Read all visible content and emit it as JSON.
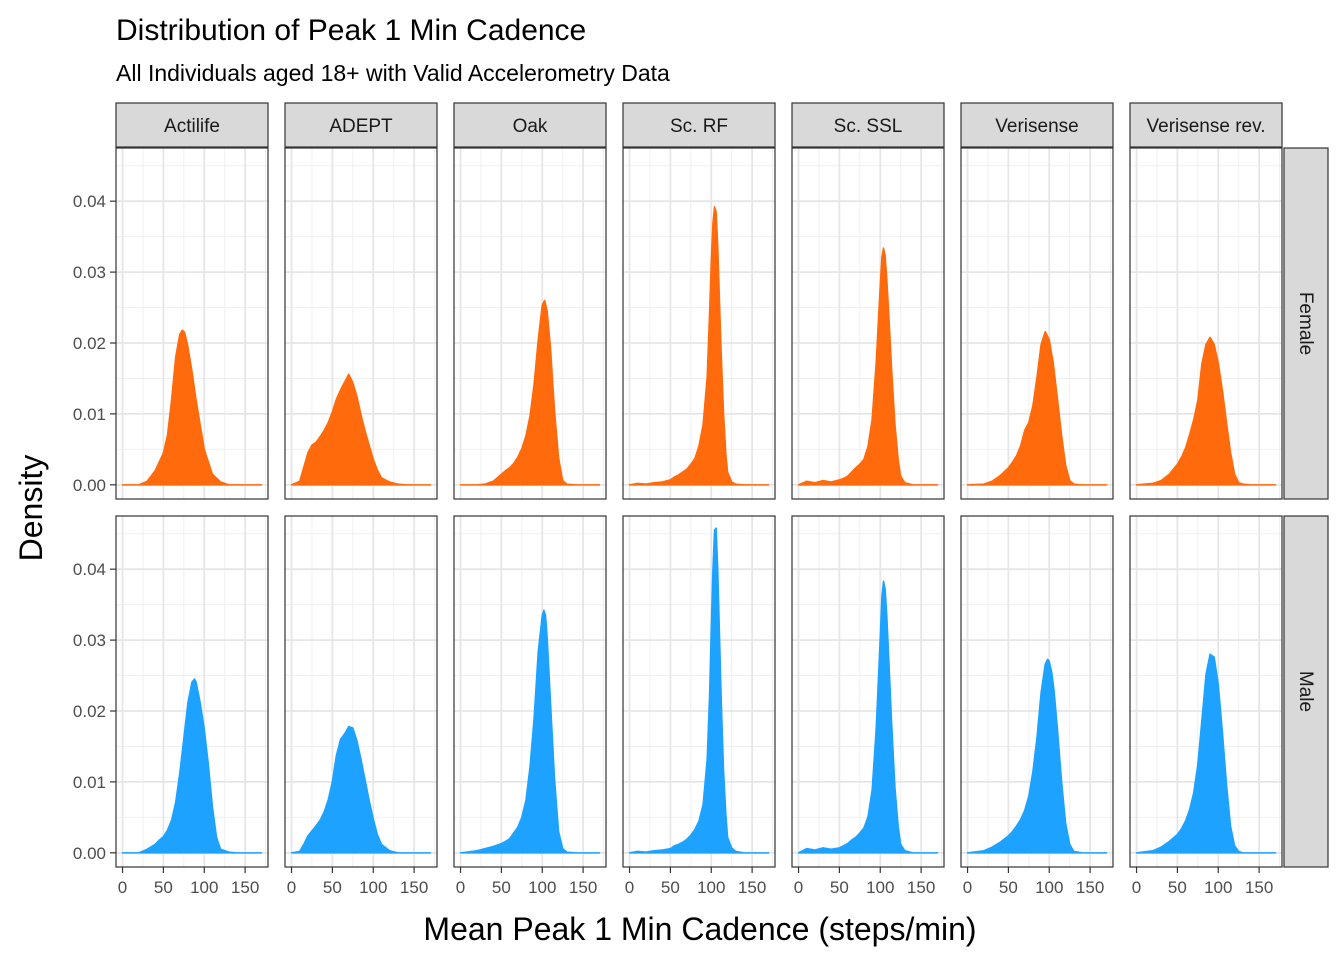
{
  "chart_data": {
    "type": "area",
    "title": "Distribution of Peak 1 Min Cadence",
    "subtitle": "All Individuals aged 18+ with Valid Accelerometry Data",
    "xlabel": "Mean Peak 1 Min Cadence (steps/min)",
    "ylabel": "Density",
    "xlim": [
      -8,
      178
    ],
    "ylim": [
      -0.002,
      0.0475
    ],
    "x_ticks": [
      0,
      50,
      100,
      150
    ],
    "x_tick_labels": [
      "0",
      "50",
      "100",
      "150"
    ],
    "y_ticks": [
      0,
      0.01,
      0.02,
      0.03,
      0.04
    ],
    "y_tick_labels": [
      "0.00",
      "0.01",
      "0.02",
      "0.03",
      "0.04"
    ],
    "grid": true,
    "columns": [
      "Actilife",
      "ADEPT",
      "Oak",
      "Sc. RF",
      "Sc. SSL",
      "Verisense",
      "Verisense rev."
    ],
    "rows": [
      {
        "label": "Female",
        "color": "#FF6A0D"
      },
      {
        "label": "Male",
        "color": "#1EA2FF"
      }
    ],
    "panels": [
      {
        "row": "Female",
        "col": "Actilife",
        "x": [
          0,
          20,
          30,
          40,
          50,
          55,
          60,
          65,
          70,
          73,
          76,
          80,
          85,
          90,
          95,
          100,
          110,
          120,
          130,
          140,
          150,
          170
        ],
        "y": [
          0,
          0,
          0.0005,
          0.002,
          0.0045,
          0.007,
          0.012,
          0.018,
          0.0212,
          0.0218,
          0.0215,
          0.0195,
          0.016,
          0.012,
          0.0085,
          0.005,
          0.0015,
          0.0004,
          0,
          0,
          0,
          0
        ]
      },
      {
        "row": "Female",
        "col": "ADEPT",
        "x": [
          0,
          10,
          15,
          20,
          25,
          30,
          35,
          40,
          45,
          50,
          55,
          60,
          65,
          70,
          75,
          80,
          85,
          90,
          95,
          100,
          105,
          110,
          120,
          130,
          140,
          150,
          170
        ],
        "y": [
          0,
          0.0005,
          0.0025,
          0.0045,
          0.0056,
          0.006,
          0.0068,
          0.0077,
          0.0088,
          0.0103,
          0.0121,
          0.0134,
          0.0145,
          0.0156,
          0.0144,
          0.0125,
          0.0099,
          0.0076,
          0.0056,
          0.0036,
          0.0021,
          0.001,
          0.0004,
          0.0001,
          0,
          0,
          0
        ]
      },
      {
        "row": "Female",
        "col": "Oak",
        "x": [
          0,
          20,
          30,
          40,
          50,
          55,
          60,
          65,
          70,
          75,
          80,
          85,
          90,
          95,
          100,
          103,
          106,
          110,
          115,
          120,
          125,
          130,
          140,
          150,
          170
        ],
        "y": [
          0,
          0,
          0.0001,
          0.0005,
          0.0015,
          0.002,
          0.0024,
          0.003,
          0.0039,
          0.0051,
          0.0069,
          0.0097,
          0.0142,
          0.0204,
          0.0254,
          0.026,
          0.0245,
          0.0195,
          0.0105,
          0.0038,
          0.0006,
          0.0001,
          0,
          0,
          0
        ]
      },
      {
        "row": "Female",
        "col": "Sc. RF",
        "x": [
          0,
          10,
          20,
          30,
          40,
          50,
          55,
          60,
          65,
          70,
          75,
          80,
          85,
          90,
          95,
          98,
          100,
          102,
          104,
          106,
          108,
          110,
          112,
          115,
          118,
          120,
          125,
          130,
          140,
          150,
          170
        ],
        "y": [
          0,
          0.0002,
          0.0001,
          0.0003,
          0.0004,
          0.0007,
          0.0011,
          0.0014,
          0.0018,
          0.0022,
          0.0029,
          0.0037,
          0.0055,
          0.0085,
          0.0152,
          0.0245,
          0.0315,
          0.0368,
          0.0392,
          0.0385,
          0.0335,
          0.0262,
          0.0192,
          0.0102,
          0.0042,
          0.0018,
          0.0004,
          0.0001,
          0,
          0,
          0
        ]
      },
      {
        "row": "Female",
        "col": "Sc. SSL",
        "x": [
          0,
          10,
          20,
          30,
          40,
          50,
          55,
          60,
          65,
          70,
          75,
          80,
          85,
          90,
          95,
          100,
          102,
          104,
          106,
          108,
          110,
          114,
          118,
          122,
          125,
          130,
          140,
          150,
          170
        ],
        "y": [
          0,
          0.0005,
          0.0003,
          0.0006,
          0.0004,
          0.0007,
          0.0009,
          0.0012,
          0.0018,
          0.0024,
          0.0029,
          0.0036,
          0.0054,
          0.0092,
          0.0172,
          0.0282,
          0.0321,
          0.0334,
          0.0323,
          0.029,
          0.025,
          0.0162,
          0.0085,
          0.0035,
          0.0012,
          0.0003,
          0,
          0,
          0
        ]
      },
      {
        "row": "Female",
        "col": "Verisense",
        "x": [
          0,
          20,
          30,
          40,
          50,
          55,
          60,
          65,
          70,
          75,
          80,
          85,
          90,
          95,
          100,
          105,
          110,
          115,
          120,
          125,
          130,
          140,
          150,
          170
        ],
        "y": [
          0,
          0.0001,
          0.0005,
          0.0013,
          0.0024,
          0.0032,
          0.0041,
          0.0055,
          0.0077,
          0.0088,
          0.0112,
          0.0152,
          0.0198,
          0.0216,
          0.0205,
          0.0171,
          0.0122,
          0.0071,
          0.0028,
          0.0006,
          0.0001,
          0,
          0,
          0
        ]
      },
      {
        "row": "Female",
        "col": "Verisense rev.",
        "x": [
          0,
          20,
          30,
          40,
          50,
          55,
          60,
          65,
          70,
          75,
          80,
          85,
          90,
          95,
          100,
          105,
          110,
          115,
          120,
          125,
          130,
          140,
          150,
          170
        ],
        "y": [
          0,
          0.0002,
          0.0006,
          0.0015,
          0.0029,
          0.0039,
          0.0052,
          0.0071,
          0.0092,
          0.0119,
          0.0171,
          0.0198,
          0.0208,
          0.0198,
          0.0172,
          0.0134,
          0.0089,
          0.0046,
          0.0015,
          0.0003,
          0.0001,
          0,
          0,
          0
        ]
      },
      {
        "row": "Male",
        "col": "Actilife",
        "x": [
          0,
          20,
          30,
          40,
          45,
          50,
          55,
          60,
          65,
          70,
          75,
          80,
          85,
          88,
          90,
          95,
          100,
          105,
          110,
          115,
          120,
          130,
          140,
          170
        ],
        "y": [
          0,
          0,
          0.0005,
          0.0012,
          0.0018,
          0.0023,
          0.0032,
          0.0046,
          0.0071,
          0.0112,
          0.0162,
          0.0212,
          0.0241,
          0.0245,
          0.0241,
          0.0212,
          0.0175,
          0.0125,
          0.0065,
          0.0022,
          0.0005,
          0.0001,
          0,
          0
        ]
      },
      {
        "row": "Male",
        "col": "ADEPT",
        "x": [
          0,
          10,
          15,
          20,
          25,
          30,
          35,
          40,
          45,
          50,
          55,
          60,
          65,
          70,
          75,
          80,
          85,
          90,
          95,
          100,
          105,
          110,
          120,
          130,
          140,
          150,
          170
        ],
        "y": [
          0,
          0.0002,
          0.0012,
          0.0024,
          0.0031,
          0.0038,
          0.0046,
          0.0058,
          0.0075,
          0.0101,
          0.0138,
          0.016,
          0.0168,
          0.0178,
          0.0176,
          0.0158,
          0.0132,
          0.0103,
          0.0074,
          0.0048,
          0.0026,
          0.0012,
          0.0003,
          0,
          0,
          0,
          0
        ]
      },
      {
        "row": "Male",
        "col": "Oak",
        "x": [
          0,
          20,
          30,
          40,
          50,
          55,
          60,
          65,
          70,
          75,
          80,
          85,
          90,
          95,
          100,
          102,
          104,
          106,
          110,
          115,
          120,
          125,
          130,
          140,
          150,
          170
        ],
        "y": [
          0,
          0.0003,
          0.0006,
          0.0009,
          0.0013,
          0.0016,
          0.002,
          0.0028,
          0.0036,
          0.005,
          0.0074,
          0.0121,
          0.019,
          0.0283,
          0.0335,
          0.0342,
          0.0335,
          0.0305,
          0.0215,
          0.0105,
          0.003,
          0.0006,
          0.0001,
          0,
          0,
          0
        ]
      },
      {
        "row": "Male",
        "col": "Sc. RF",
        "x": [
          0,
          10,
          20,
          30,
          40,
          50,
          55,
          60,
          65,
          70,
          75,
          80,
          85,
          90,
          95,
          98,
          100,
          102,
          104,
          106,
          108,
          110,
          112,
          115,
          118,
          120,
          125,
          130,
          140,
          150,
          170
        ],
        "y": [
          0,
          0.0002,
          0.0001,
          0.0003,
          0.0004,
          0.0006,
          0.001,
          0.0012,
          0.0015,
          0.0019,
          0.0025,
          0.0033,
          0.0045,
          0.0068,
          0.0132,
          0.0225,
          0.0318,
          0.0398,
          0.0455,
          0.0458,
          0.0398,
          0.0312,
          0.0225,
          0.0118,
          0.0052,
          0.0022,
          0.0007,
          0.0002,
          0,
          0,
          0
        ]
      },
      {
        "row": "Male",
        "col": "Sc. SSL",
        "x": [
          0,
          10,
          20,
          30,
          40,
          50,
          55,
          60,
          65,
          70,
          75,
          80,
          85,
          90,
          95,
          100,
          102,
          104,
          106,
          108,
          110,
          114,
          118,
          122,
          125,
          130,
          140,
          150,
          170
        ],
        "y": [
          0,
          0.0006,
          0.0004,
          0.0007,
          0.0005,
          0.0007,
          0.001,
          0.0013,
          0.0018,
          0.0022,
          0.0028,
          0.0035,
          0.0051,
          0.0088,
          0.0175,
          0.0305,
          0.0362,
          0.0383,
          0.0372,
          0.0335,
          0.0285,
          0.0182,
          0.0092,
          0.0037,
          0.0012,
          0.0003,
          0,
          0,
          0
        ]
      },
      {
        "row": "Male",
        "col": "Verisense",
        "x": [
          0,
          20,
          30,
          40,
          50,
          55,
          60,
          65,
          70,
          75,
          80,
          85,
          90,
          95,
          98,
          100,
          103,
          106,
          110,
          115,
          120,
          125,
          130,
          140,
          170
        ],
        "y": [
          0,
          0.0003,
          0.0008,
          0.0015,
          0.0024,
          0.003,
          0.0038,
          0.0047,
          0.006,
          0.008,
          0.0115,
          0.0163,
          0.0226,
          0.0266,
          0.0273,
          0.027,
          0.0255,
          0.0228,
          0.0175,
          0.0102,
          0.0042,
          0.0012,
          0.0002,
          0,
          0
        ]
      },
      {
        "row": "Male",
        "col": "Verisense rev.",
        "x": [
          0,
          20,
          30,
          40,
          50,
          55,
          60,
          65,
          70,
          75,
          80,
          85,
          90,
          95,
          100,
          105,
          110,
          115,
          120,
          125,
          130,
          140,
          170
        ],
        "y": [
          0,
          0.0003,
          0.0008,
          0.0016,
          0.0026,
          0.0034,
          0.0045,
          0.0061,
          0.0085,
          0.0125,
          0.0188,
          0.0252,
          0.028,
          0.0276,
          0.0238,
          0.0172,
          0.0098,
          0.0038,
          0.001,
          0.0002,
          0,
          0,
          0
        ]
      }
    ]
  }
}
